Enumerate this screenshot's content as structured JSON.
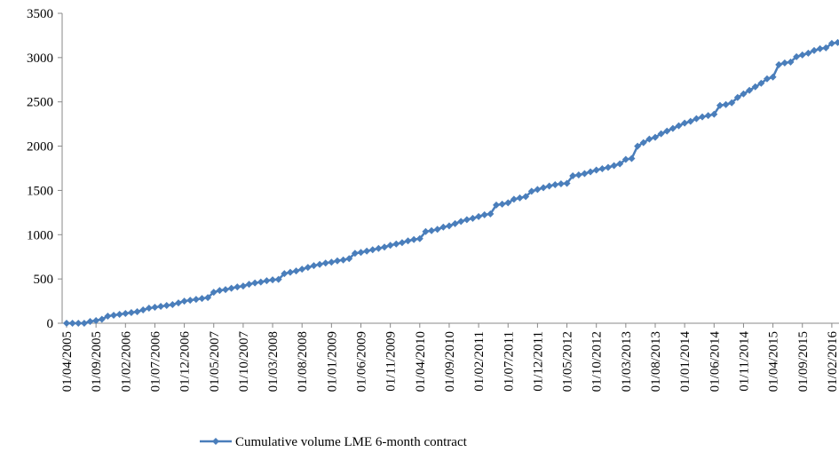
{
  "chart_data": {
    "type": "line",
    "categories": [
      "01/04/2005",
      null,
      null,
      null,
      null,
      "01/09/2005",
      null,
      null,
      null,
      null,
      "01/02/2006",
      null,
      null,
      null,
      null,
      "01/07/2006",
      null,
      null,
      null,
      null,
      "01/12/2006",
      null,
      null,
      null,
      null,
      "01/05/2007",
      null,
      null,
      null,
      null,
      "01/10/2007",
      null,
      null,
      null,
      null,
      "01/03/2008",
      null,
      null,
      null,
      null,
      "01/08/2008",
      null,
      null,
      null,
      null,
      "01/01/2009",
      null,
      null,
      null,
      null,
      "01/06/2009",
      null,
      null,
      null,
      null,
      "01/11/2009",
      null,
      null,
      null,
      null,
      "01/04/2010",
      null,
      null,
      null,
      null,
      "01/09/2010",
      null,
      null,
      null,
      null,
      "01/02/2011",
      null,
      null,
      null,
      null,
      "01/07/2011",
      null,
      null,
      null,
      null,
      "01/12/2011",
      null,
      null,
      null,
      null,
      "01/05/2012",
      null,
      null,
      null,
      null,
      "01/10/2012",
      null,
      null,
      null,
      null,
      "01/03/2013",
      null,
      null,
      null,
      null,
      "01/08/2013",
      null,
      null,
      null,
      null,
      "01/01/2014",
      null,
      null,
      null,
      null,
      "01/06/2014",
      null,
      null,
      null,
      null,
      "01/11/2014",
      null,
      null,
      null,
      null,
      "01/04/2015",
      null,
      null,
      null,
      null,
      "01/09/2015",
      null,
      null,
      null,
      null,
      "01/02/2016",
      null
    ],
    "series": [
      {
        "name": "Cumulative volume LME 6-month contract",
        "color": "#4a7ebb",
        "values": [
          0,
          0,
          0,
          0,
          20,
          30,
          45,
          80,
          90,
          100,
          110,
          120,
          130,
          150,
          170,
          180,
          190,
          200,
          210,
          230,
          250,
          260,
          270,
          280,
          290,
          350,
          370,
          380,
          395,
          410,
          420,
          440,
          455,
          465,
          480,
          490,
          495,
          560,
          575,
          590,
          610,
          630,
          650,
          665,
          680,
          690,
          705,
          715,
          730,
          790,
          800,
          815,
          830,
          845,
          860,
          880,
          895,
          910,
          930,
          945,
          955,
          1035,
          1045,
          1060,
          1085,
          1100,
          1125,
          1150,
          1170,
          1185,
          1205,
          1225,
          1235,
          1335,
          1345,
          1360,
          1400,
          1415,
          1430,
          1490,
          1510,
          1530,
          1550,
          1565,
          1575,
          1580,
          1665,
          1675,
          1690,
          1710,
          1730,
          1745,
          1760,
          1780,
          1800,
          1850,
          1860,
          2000,
          2040,
          2080,
          2100,
          2140,
          2170,
          2200,
          2230,
          2260,
          2280,
          2310,
          2330,
          2345,
          2360,
          2460,
          2470,
          2490,
          2550,
          2590,
          2630,
          2670,
          2710,
          2760,
          2780,
          2920,
          2940,
          2950,
          3010,
          3030,
          3050,
          3080,
          3100,
          3110,
          3160,
          3170
        ]
      }
    ],
    "ylim": [
      0,
      3500
    ],
    "yticks": [
      0,
      500,
      1000,
      1500,
      2000,
      2500,
      3000,
      3500
    ],
    "grid": false,
    "legend": "bottom"
  }
}
